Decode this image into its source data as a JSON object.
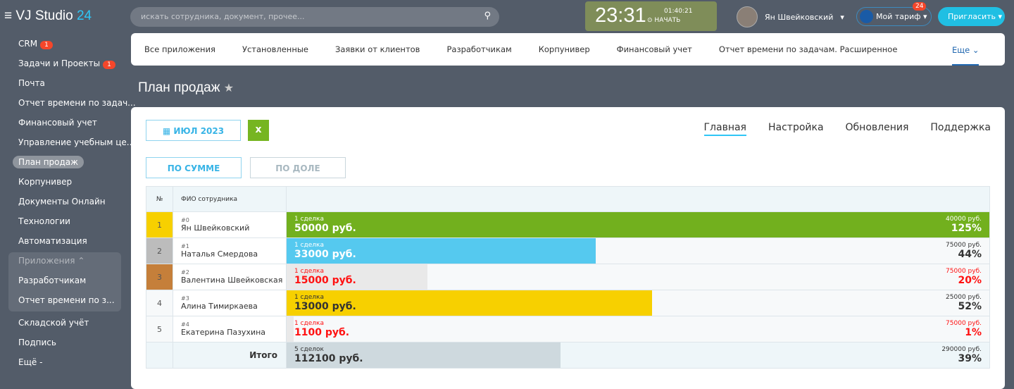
{
  "header": {
    "logo_text": "VJ Studio",
    "logo_number": "24",
    "search_placeholder": "искать сотрудника, документ, прочее...",
    "clock_time": "23:31",
    "clock_elapsed": "01:40:21",
    "clock_start": "НАЧАТЬ",
    "user_name": "Ян Швейковский",
    "tariff_label": "Мой тариф",
    "tariff_badge": "24",
    "invite_label": "Пригласить"
  },
  "sidebar": {
    "items": [
      {
        "label": "CRM",
        "count": "1"
      },
      {
        "label": "Задачи и Проекты",
        "count": "1"
      },
      {
        "label": "Почта"
      },
      {
        "label": "Отчет времени по задач..."
      },
      {
        "label": "Финансовый учет"
      },
      {
        "label": "Управление учебным це..."
      },
      {
        "label": "План продаж",
        "active": true
      },
      {
        "label": "Корпунивер"
      },
      {
        "label": "Документы Онлайн"
      },
      {
        "label": "Технологии"
      },
      {
        "label": "Автоматизация"
      }
    ],
    "group": {
      "label": "Приложения",
      "items": [
        {
          "label": "Разработчикам"
        },
        {
          "label": "Отчет времени по з..."
        }
      ]
    },
    "after": [
      {
        "label": "Складской учёт"
      },
      {
        "label": "Подпись"
      },
      {
        "label": "Ещё -"
      }
    ]
  },
  "topnav": {
    "items": [
      "Все приложения",
      "Установленные",
      "Заявки от клиентов",
      "Разработчикам",
      "Корпунивер",
      "Финансовый учет",
      "Отчет времени по задачам. Расширенное"
    ],
    "more": "Еще"
  },
  "page": {
    "title": "План продаж",
    "period": "ИЮЛ 2023",
    "excel_label": "x",
    "mode_sum": "ПО СУММЕ",
    "mode_share": "ПО ДОЛЕ",
    "tabs": [
      "Главная",
      "Настройка",
      "Обновления",
      "Поддержка"
    ],
    "active_tab": "Главная"
  },
  "table": {
    "headers": [
      "№",
      "ФИО сотрудника",
      ""
    ],
    "rows": [
      {
        "rank": "1",
        "id": "#0",
        "name": "Ян Швейковский",
        "deals": "1 сделка",
        "sum": "50000 руб.",
        "target": "40000 руб.",
        "percent": "125%",
        "progress": 125,
        "rank_color": "#f7d000",
        "bar_color": "#72b01e",
        "text": "wht"
      },
      {
        "rank": "2",
        "id": "#1",
        "name": "Наталья Смердова",
        "deals": "1 сделка",
        "sum": "33000 руб.",
        "target": "75000 руб.",
        "percent": "44%",
        "progress": 44,
        "rank_color": "#bcbcbc",
        "bar_color": "#55c9ef",
        "text": "wht"
      },
      {
        "rank": "3",
        "id": "#2",
        "name": "Валентина Швейковская",
        "deals": "1 сделка",
        "sum": "15000 руб.",
        "target": "75000 руб.",
        "percent": "20%",
        "progress": 20,
        "rank_color": "#c57f3a",
        "bar_color": "#e9e9e9",
        "text": "red"
      },
      {
        "rank": "4",
        "id": "#3",
        "name": "Алина Тимиркаева",
        "deals": "1 сделка",
        "sum": "13000 руб.",
        "target": "25000 руб.",
        "percent": "52%",
        "progress": 52,
        "rank_color": "#f7f9fa",
        "bar_color": "#f7d000",
        "text": "dark"
      },
      {
        "rank": "5",
        "id": "#4",
        "name": "Екатерина Пазухина",
        "deals": "1 сделка",
        "sum": "1100 руб.",
        "target": "75000 руб.",
        "percent": "1%",
        "progress": 1,
        "rank_color": "#f7f9fa",
        "bar_color": "#e9e9e9",
        "text": "red"
      }
    ],
    "total": {
      "label": "Итого",
      "deals": "5 сделок",
      "sum": "112100 руб.",
      "target": "290000 руб.",
      "percent": "39%",
      "progress": 39,
      "bar_color": "#ced9de"
    }
  }
}
